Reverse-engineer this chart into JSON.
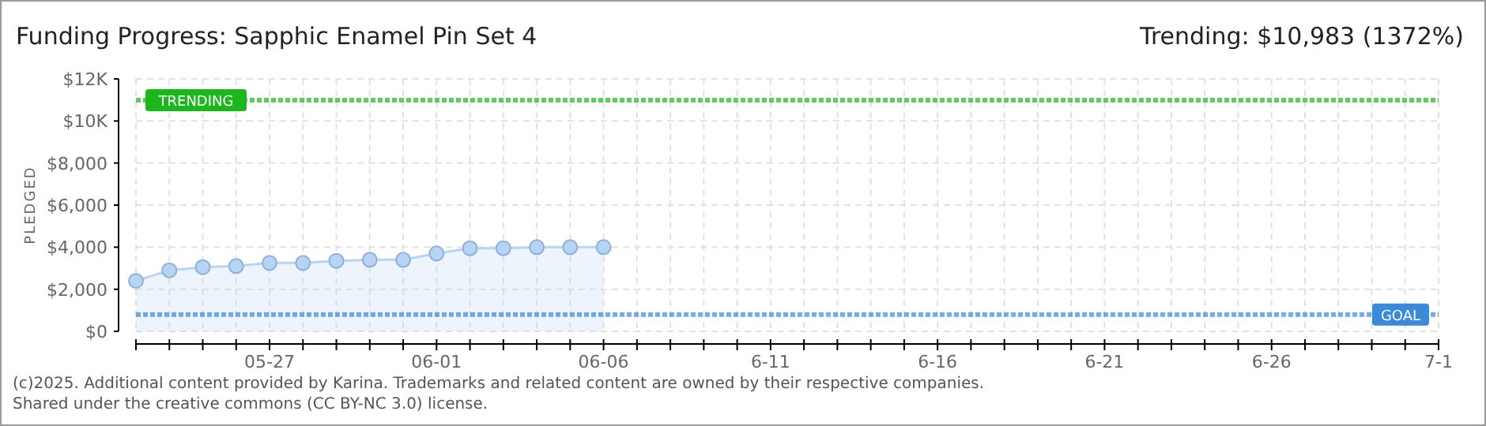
{
  "chart_data": {
    "type": "area",
    "title": "Funding Progress: Sapphic Enamel Pin Set 4",
    "subtitle": "Trending: $10,983 (1372%)",
    "ylabel": "PLEDGED",
    "x": [
      "2025-05-23",
      "2025-05-24",
      "2025-05-25",
      "2025-05-26",
      "2025-05-27",
      "2025-05-28",
      "2025-05-29",
      "2025-05-30",
      "2025-05-31",
      "2025-06-01",
      "2025-06-02",
      "2025-06-03",
      "2025-06-04",
      "2025-06-05",
      "2025-06-06"
    ],
    "series": [
      {
        "color": "#b8d4f4",
        "values": [
          2400,
          2900,
          3050,
          3100,
          3250,
          3250,
          3350,
          3400,
          3400,
          3700,
          3950,
          3950,
          4000,
          4000,
          4000
        ]
      }
    ],
    "xlim": [
      "2025-05-23",
      "2025-07-01"
    ],
    "xticks": [
      {
        "value": "2025-05-23",
        "label": null
      },
      {
        "value": "2025-05-24",
        "label": null
      },
      {
        "value": "2025-05-25",
        "label": null
      },
      {
        "value": "2025-05-26",
        "label": null
      },
      {
        "value": "2025-05-27",
        "label": "05-27"
      },
      {
        "value": "2025-05-28",
        "label": null
      },
      {
        "value": "2025-05-29",
        "label": null
      },
      {
        "value": "2025-05-30",
        "label": null
      },
      {
        "value": "2025-05-31",
        "label": null
      },
      {
        "value": "2025-06-01",
        "label": "06-01"
      },
      {
        "value": "2025-06-02",
        "label": null
      },
      {
        "value": "2025-06-03",
        "label": null
      },
      {
        "value": "2025-06-04",
        "label": null
      },
      {
        "value": "2025-06-05",
        "label": null
      },
      {
        "value": "2025-06-06",
        "label": "06-06"
      },
      {
        "value": "2025-06-07",
        "label": null
      },
      {
        "value": "2025-06-08",
        "label": null
      },
      {
        "value": "2025-06-09",
        "label": null
      },
      {
        "value": "2025-06-10",
        "label": null
      },
      {
        "value": "2025-06-11",
        "label": "6-11"
      },
      {
        "value": "2025-06-12",
        "label": null
      },
      {
        "value": "2025-06-13",
        "label": null
      },
      {
        "value": "2025-06-14",
        "label": null
      },
      {
        "value": "2025-06-15",
        "label": null
      },
      {
        "value": "2025-06-16",
        "label": "6-16"
      },
      {
        "value": "2025-06-17",
        "label": null
      },
      {
        "value": "2025-06-18",
        "label": null
      },
      {
        "value": "2025-06-19",
        "label": null
      },
      {
        "value": "2025-06-20",
        "label": null
      },
      {
        "value": "2025-06-21",
        "label": "6-21"
      },
      {
        "value": "2025-06-22",
        "label": null
      },
      {
        "value": "2025-06-23",
        "label": null
      },
      {
        "value": "2025-06-24",
        "label": null
      },
      {
        "value": "2025-06-25",
        "label": null
      },
      {
        "value": "2025-06-26",
        "label": "6-26"
      },
      {
        "value": "2025-06-27",
        "label": null
      },
      {
        "value": "2025-06-28",
        "label": null
      },
      {
        "value": "2025-06-29",
        "label": null
      },
      {
        "value": "2025-06-30",
        "label": null
      },
      {
        "value": "2025-07-01",
        "label": "7-1"
      }
    ],
    "ylim": [
      0,
      12000
    ],
    "yticks": [
      {
        "value": 0,
        "label": "$0"
      },
      {
        "value": 2000,
        "label": "$2,000"
      },
      {
        "value": 4000,
        "label": "$4,000"
      },
      {
        "value": 6000,
        "label": "$6,000"
      },
      {
        "value": 8000,
        "label": "$8,000"
      },
      {
        "value": 10000,
        "label": "$10K"
      },
      {
        "value": 12000,
        "label": "$12K"
      }
    ],
    "ref_lines": [
      {
        "axis": "y",
        "value": 10983,
        "label": "TRENDING",
        "color": "#1db71d",
        "line_style": "dotted"
      },
      {
        "axis": "y",
        "value": 800,
        "label": "GOAL",
        "color": "#3a8ad8",
        "line_style": "dotted"
      }
    ],
    "grid": true,
    "marker": "circle",
    "annotations": [
      "(c)2025. Additional content provided by Karina. Trademarks and related content are owned by their respective companies.",
      "Shared under the creative commons (CC BY-NC 3.0) license."
    ]
  }
}
